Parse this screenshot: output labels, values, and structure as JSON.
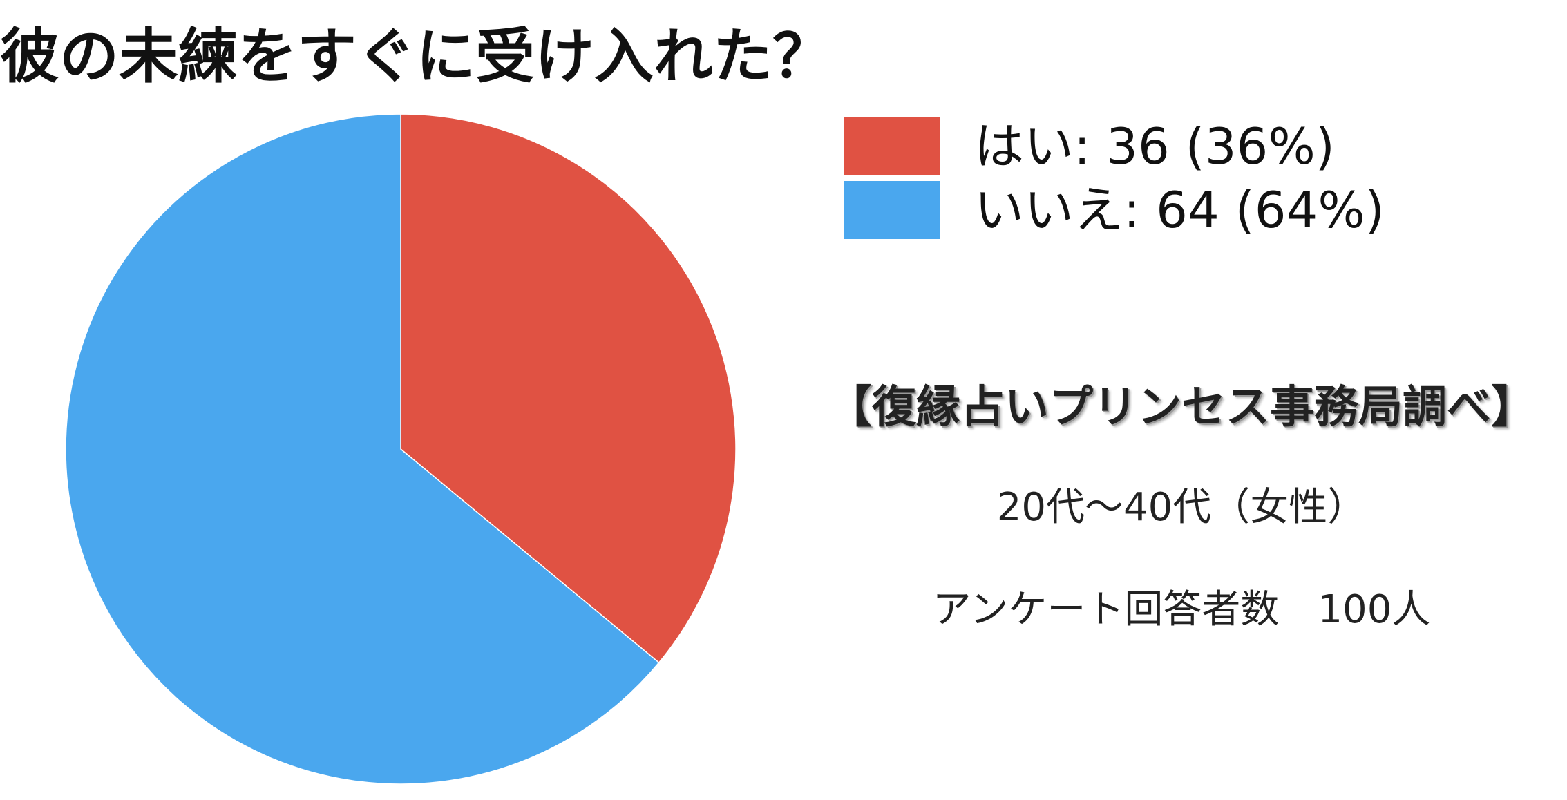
{
  "chart_data": {
    "type": "pie",
    "title": "彼の未練をすぐに受け入れた？",
    "categories": [
      "はい",
      "いいえ"
    ],
    "values": [
      36,
      64
    ],
    "percentages": [
      36,
      64
    ],
    "colors": [
      "#E05243",
      "#4AA7EE"
    ],
    "start_angle": "12 o'clock",
    "direction": "clockwise",
    "legend": {
      "placement": "top-right",
      "entries": [
        "はい: 36 (36%)",
        "いいえ: 64 (64%)"
      ]
    }
  },
  "notes": {
    "source": "【復縁占いプリンセス事務局調べ】",
    "demographic": "20代〜40代（女性）",
    "respondents": "アンケート回答者数　100人"
  }
}
